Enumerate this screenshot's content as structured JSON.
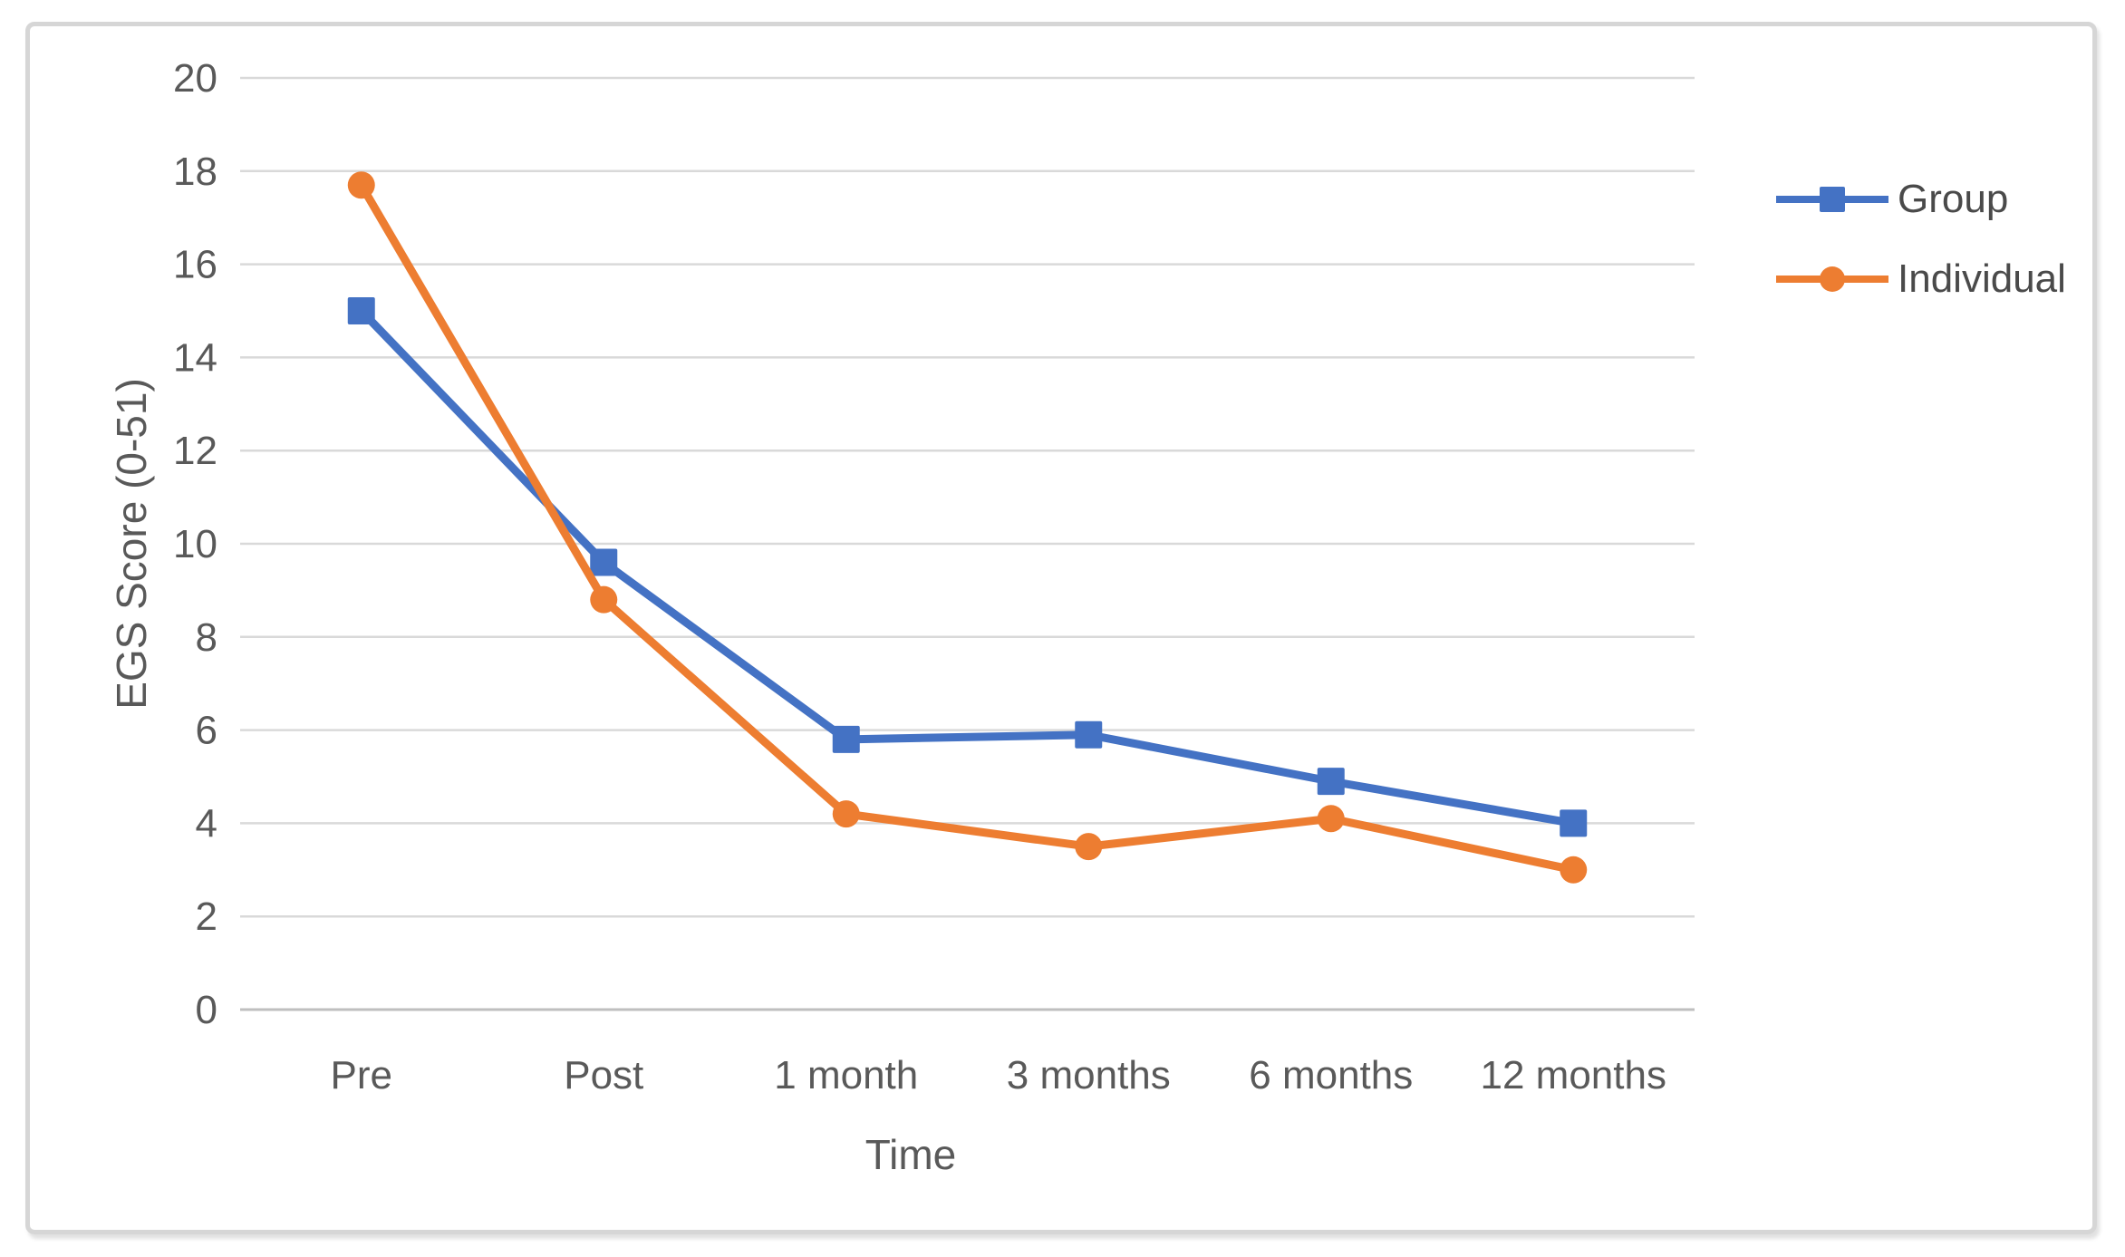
{
  "chart_data": {
    "type": "line",
    "title": "",
    "xlabel": "Time",
    "ylabel": "EGS Score (0-51)",
    "categories": [
      "Pre",
      "Post",
      "1 month",
      "3 months",
      "6 months",
      "12 months"
    ],
    "series": [
      {
        "name": "Group",
        "marker": "square",
        "color": "#4472C4",
        "values": [
          15.0,
          9.6,
          5.8,
          5.9,
          4.9,
          4.0
        ]
      },
      {
        "name": "Individual",
        "marker": "circle",
        "color": "#ED7D31",
        "values": [
          17.7,
          8.8,
          4.2,
          3.5,
          4.1,
          3.0
        ]
      }
    ],
    "ylim": [
      0,
      20
    ],
    "yticks": [
      0,
      2,
      4,
      6,
      8,
      10,
      12,
      14,
      16,
      18,
      20
    ],
    "grid": "horizontal",
    "legend_position": "right"
  },
  "colors": {
    "grid": "#D9D9D9",
    "axis_line": "#BFBFBF",
    "tick_text": "#595959",
    "legend_text": "#4a4a4a",
    "frame_border": "#D6D6D6"
  }
}
